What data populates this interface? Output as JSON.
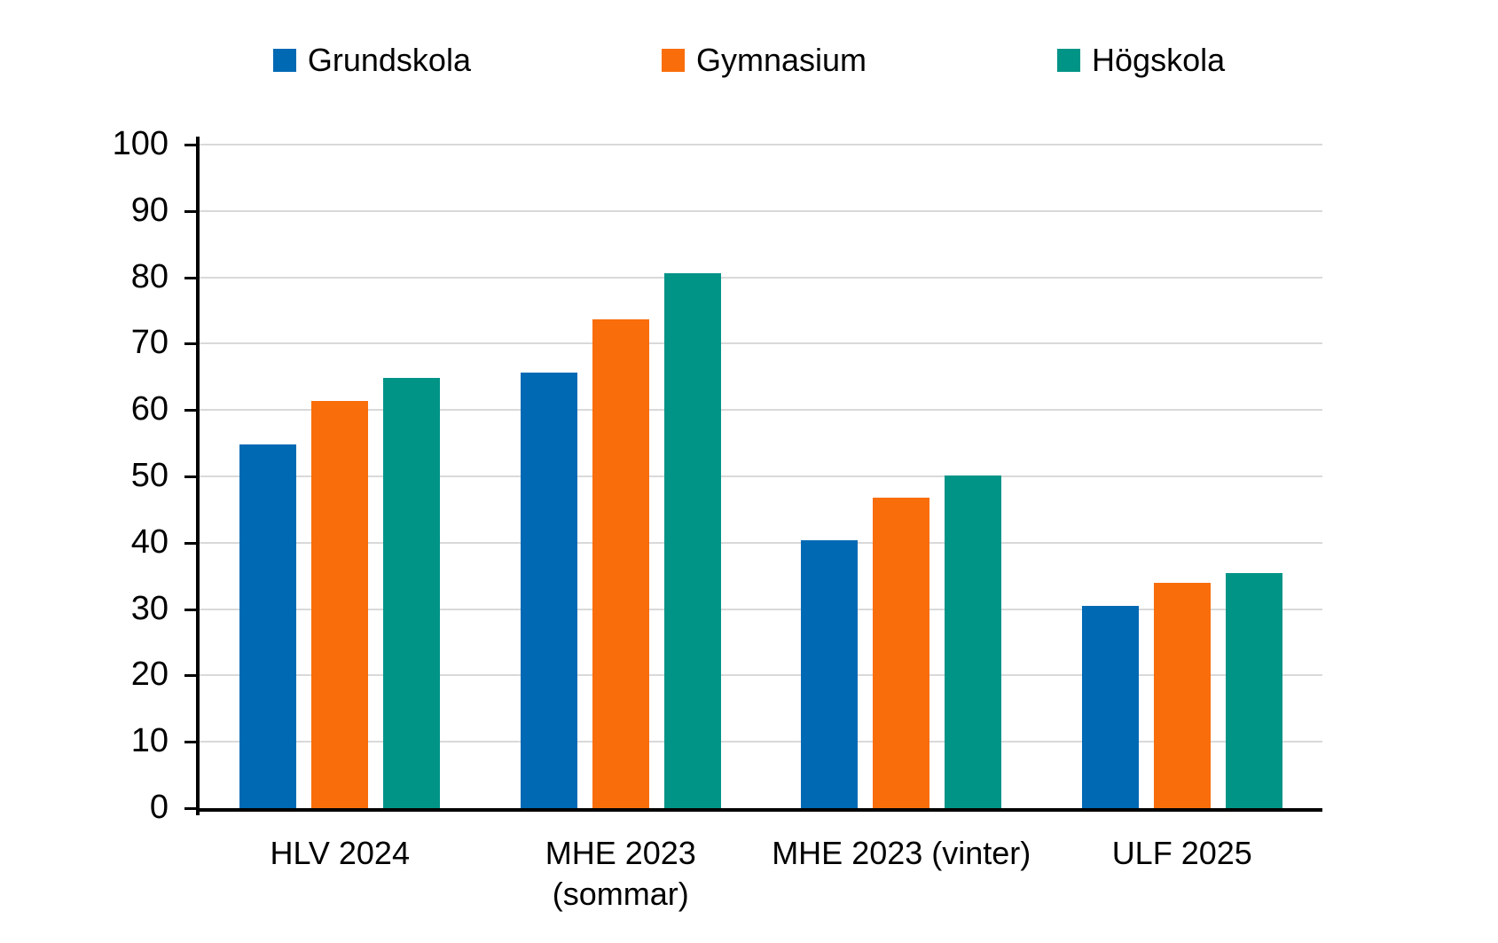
{
  "chart_data": {
    "type": "bar",
    "title": "",
    "xlabel": "",
    "ylabel": "",
    "categories": [
      "HLV 2024",
      "MHE 2023 (sommar)",
      "MHE 2023 (vinter)",
      "ULF 2025"
    ],
    "category_lines": [
      [
        "HLV 2024"
      ],
      [
        "MHE 2023",
        "(sommar)"
      ],
      [
        "MHE 2023 (vinter)"
      ],
      [
        "ULF 2025"
      ]
    ],
    "series": [
      {
        "name": "Grundskola",
        "color": "#0069B4",
        "values": [
          54.8,
          65.7,
          40.4,
          30.5
        ]
      },
      {
        "name": "Gymnasium",
        "color": "#F96D0A",
        "values": [
          61.3,
          73.7,
          46.8,
          34.0
        ]
      },
      {
        "name": "Högskola",
        "color": "#009487",
        "values": [
          64.9,
          80.6,
          50.1,
          35.4
        ]
      }
    ],
    "ylim": [
      0,
      100
    ],
    "yticks": [
      0,
      10,
      20,
      30,
      40,
      50,
      60,
      70,
      80,
      90,
      100
    ],
    "grid": true,
    "grid_color": "#D9D9D9",
    "axis_color": "#000000",
    "background_color": "#FFFFFF",
    "text_color": "#000000",
    "legend_position": "top"
  }
}
